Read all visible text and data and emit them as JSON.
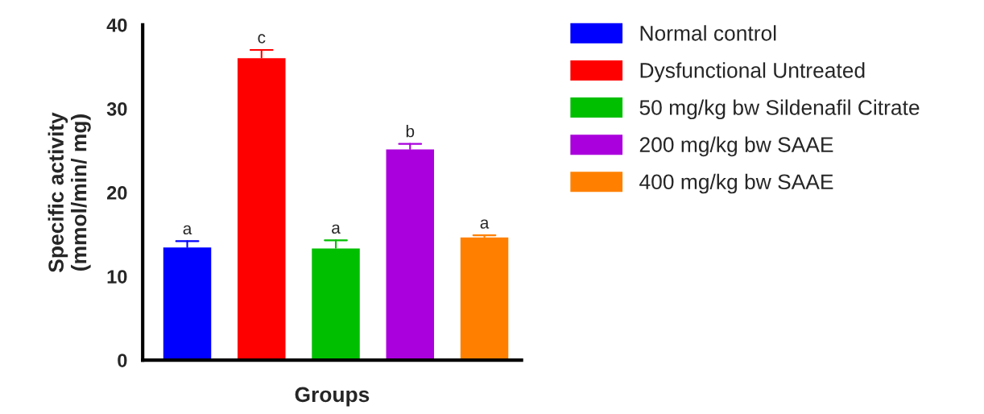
{
  "chart_data": {
    "type": "bar",
    "xlabel": "Groups",
    "ylabel": "Specific activity\n(mmol/min/ mg)",
    "categories": [
      null,
      null,
      null,
      null,
      null
    ],
    "ylim": [
      0,
      40
    ],
    "yticks": [
      0,
      10,
      20,
      30,
      40
    ],
    "grid": false,
    "legend": "right",
    "series": [
      {
        "name": "Normal control",
        "color": "#0000ff",
        "values": [
          13.5,
          null,
          null,
          null,
          null
        ],
        "errors": [
          [
            13.5,
            14.2
          ],
          null,
          null,
          null,
          null
        ],
        "value_labels": [
          "a",
          null,
          null,
          null,
          null
        ]
      },
      {
        "name": "Dysfunctional Untreated",
        "color": "#ff0000",
        "values": [
          null,
          36.1,
          null,
          null,
          null
        ],
        "errors": [
          null,
          [
            36.1,
            37.0
          ],
          null,
          null,
          null
        ],
        "value_labels": [
          null,
          "c",
          null,
          null,
          null
        ]
      },
      {
        "name": "50 mg/kg bw Sildenafil Citrate",
        "color": "#00bf00",
        "values": [
          null,
          null,
          13.4,
          null,
          null
        ],
        "errors": [
          null,
          null,
          [
            13.4,
            14.3
          ],
          null,
          null
        ],
        "value_labels": [
          null,
          null,
          "a",
          null,
          null
        ]
      },
      {
        "name": "200 mg/kg bw SAAE",
        "color": "#aa00dd",
        "values": [
          null,
          null,
          null,
          25.2,
          null
        ],
        "errors": [
          null,
          null,
          null,
          [
            25.2,
            25.8
          ],
          null
        ],
        "value_labels": [
          null,
          null,
          null,
          "b",
          null
        ]
      },
      {
        "name": "400 mg/kg bw SAAE",
        "color": "#ff8000",
        "values": [
          null,
          null,
          null,
          null,
          14.7
        ],
        "errors": [
          null,
          null,
          null,
          null,
          [
            14.7,
            14.9
          ]
        ],
        "value_labels": [
          null,
          null,
          null,
          null,
          "a"
        ]
      }
    ]
  }
}
